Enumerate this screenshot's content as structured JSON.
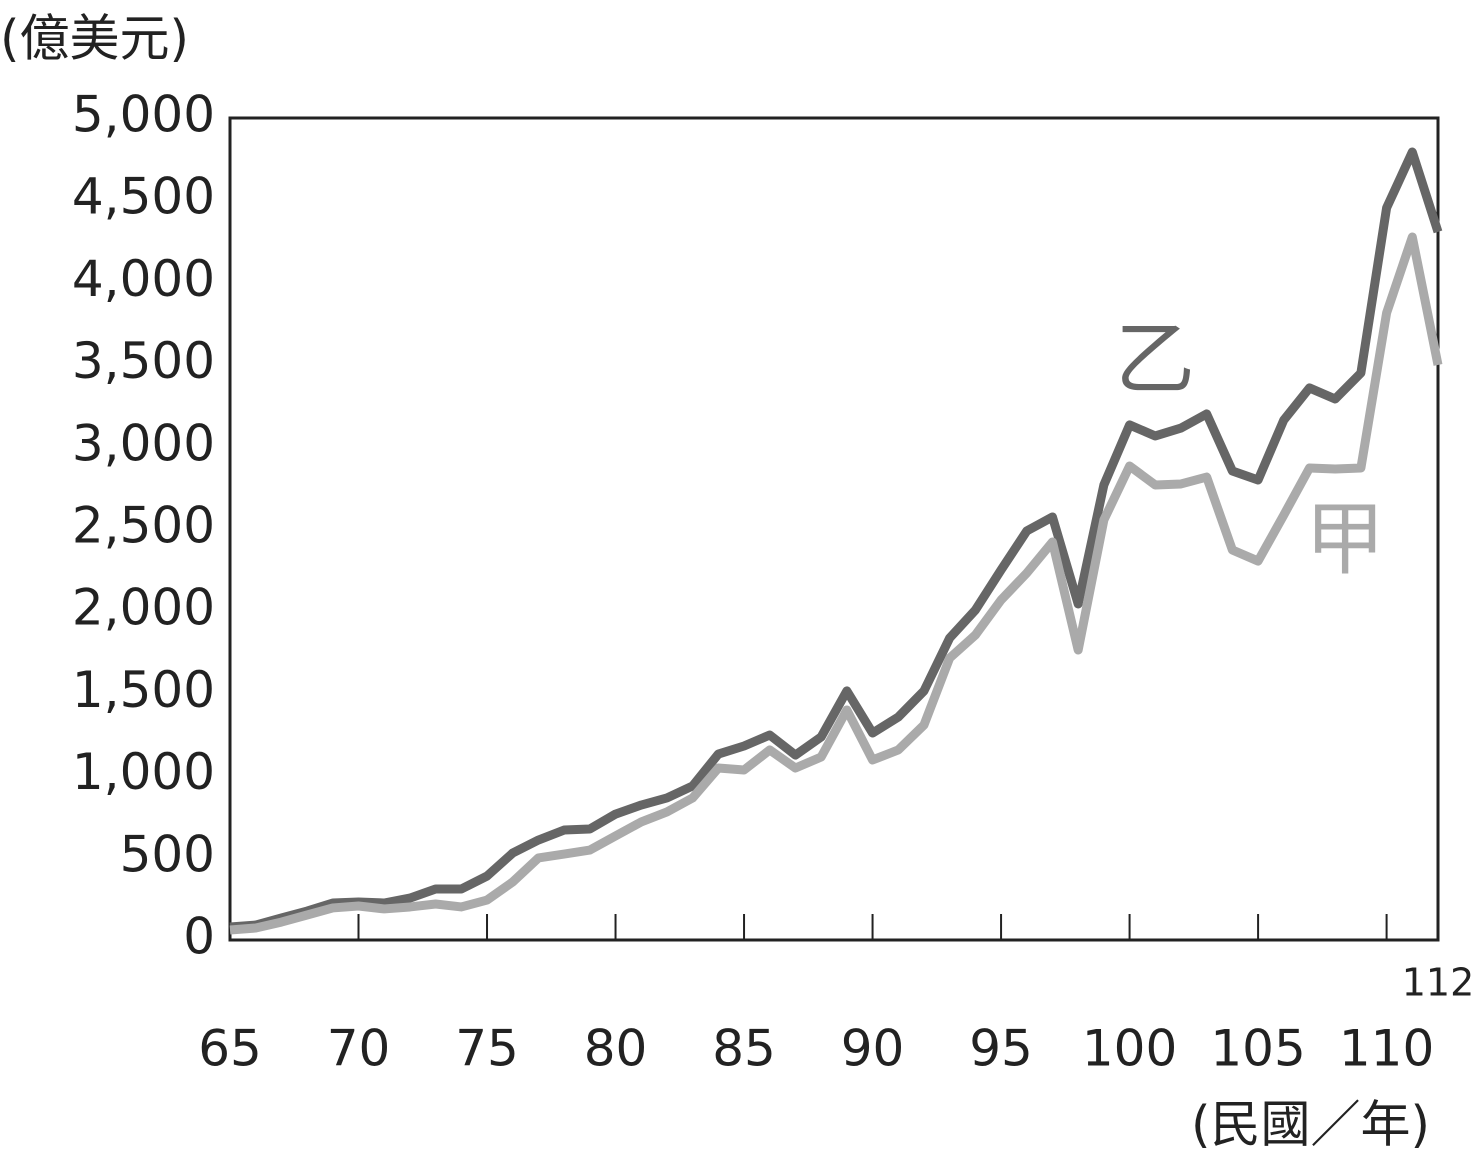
{
  "chart_data": {
    "type": "line",
    "y_axis_label": "(億美元)",
    "x_axis_label": "(民國／年)",
    "x": [
      65,
      66,
      67,
      68,
      69,
      70,
      71,
      72,
      73,
      74,
      75,
      76,
      77,
      78,
      79,
      80,
      81,
      82,
      83,
      84,
      85,
      86,
      87,
      88,
      89,
      90,
      91,
      92,
      93,
      94,
      95,
      96,
      97,
      98,
      99,
      100,
      101,
      102,
      103,
      104,
      105,
      106,
      107,
      108,
      109,
      110,
      111,
      112
    ],
    "series": [
      {
        "name": "乙",
        "color": "#666666",
        "values": [
          79,
          91,
          134,
          176,
          225,
          231,
          225,
          255,
          310,
          310,
          389,
          529,
          608,
          669,
          675,
          766,
          821,
          864,
          937,
          1131,
          1180,
          1247,
          1125,
          1235,
          1515,
          1259,
          1356,
          1515,
          1837,
          2007,
          2251,
          2488,
          2573,
          2044,
          2768,
          3133,
          3066,
          3114,
          3200,
          2853,
          2798,
          3163,
          3358,
          3291,
          3449,
          4453,
          4793,
          4307
        ]
      },
      {
        "name": "甲",
        "color": "#aaaaaa",
        "values": [
          61,
          73,
          109,
          152,
          195,
          207,
          189,
          201,
          219,
          201,
          243,
          353,
          499,
          523,
          547,
          633,
          718,
          779,
          864,
          1046,
          1034,
          1156,
          1046,
          1113,
          1399,
          1095,
          1156,
          1308,
          1715,
          1855,
          2068,
          2232,
          2421,
          1764,
          2555,
          2883,
          2768,
          2774,
          2816,
          2372,
          2305,
          2585,
          2871,
          2865,
          2871,
          3814,
          4276,
          3498
        ]
      }
    ],
    "xlim": [
      65,
      112
    ],
    "xticks": [
      65,
      70,
      75,
      80,
      85,
      90,
      95,
      100,
      105,
      110,
      112
    ],
    "ylim": [
      0,
      5000
    ],
    "yticks": [
      0,
      500,
      {
        "value": 1000,
        "label": "1,000"
      },
      {
        "value": 1500,
        "label": "1,500"
      },
      {
        "value": 2000,
        "label": "2,000"
      },
      {
        "value": 2500,
        "label": "2,500"
      },
      {
        "value": 3000,
        "label": "3,000"
      },
      {
        "value": 3500,
        "label": "3,500"
      },
      {
        "value": 4000,
        "label": "4,000"
      },
      {
        "value": 4500,
        "label": "4,500"
      },
      {
        "value": 5000,
        "label": "5,000"
      }
    ]
  }
}
